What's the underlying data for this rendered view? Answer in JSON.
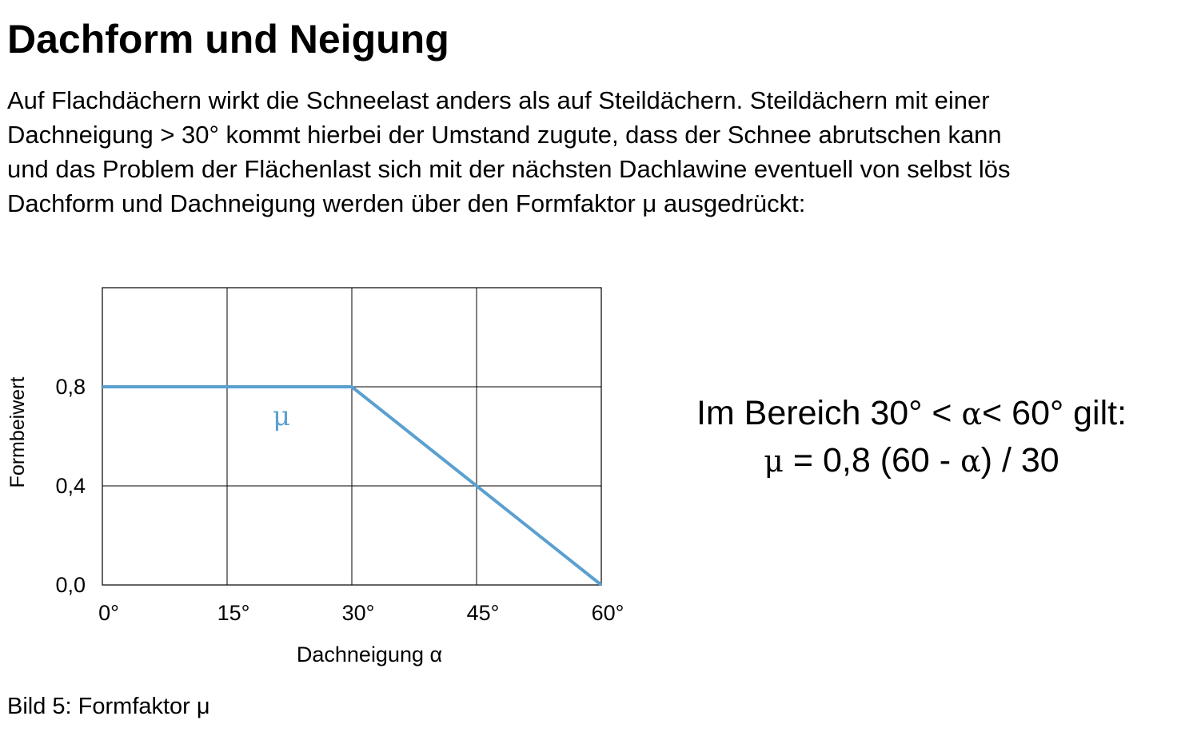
{
  "heading": "Dachform und Neigung",
  "intro_lines": [
    "Auf Flachdächern wirkt die Schneelast anders als auf Steildächern. Steildächern mit einer",
    "Dachneigung > 30° kommt hierbei der Umstand zugute, dass der Schnee abrutschen kann",
    "und das Problem der Flächenlast sich mit der nächsten Dachlawine eventuell von selbst lös",
    "Dachform und Dachneigung werden über den Formfaktor μ ausgedrückt:"
  ],
  "formula": {
    "line1_prefix": "Im Bereich 30° < ",
    "alpha": "α",
    "line1_suffix": "< 60° gilt:",
    "mu": "μ",
    "line2_mid": " = 0,8 (60 - ",
    "line2_end": ") / 30"
  },
  "caption": "Bild 5: Formfaktor μ",
  "chart_data": {
    "type": "line",
    "xlabel": "Dachneigung α",
    "ylabel": "Formbeiwert",
    "x_ticks": [
      0,
      15,
      30,
      45,
      60
    ],
    "x_tick_labels": [
      "0°",
      "15°",
      "30°",
      "45°",
      "60°"
    ],
    "y_ticks": [
      0.0,
      0.4,
      0.8
    ],
    "y_tick_labels": [
      "0,0",
      "0,4",
      "0,8"
    ],
    "xlim": [
      0,
      60
    ],
    "ylim": [
      0,
      1.2
    ],
    "grid": true,
    "line_color": "#5AA0D0",
    "series": [
      {
        "name": "μ",
        "x": [
          0,
          30,
          60
        ],
        "y": [
          0.8,
          0.8,
          0.0
        ]
      }
    ]
  }
}
